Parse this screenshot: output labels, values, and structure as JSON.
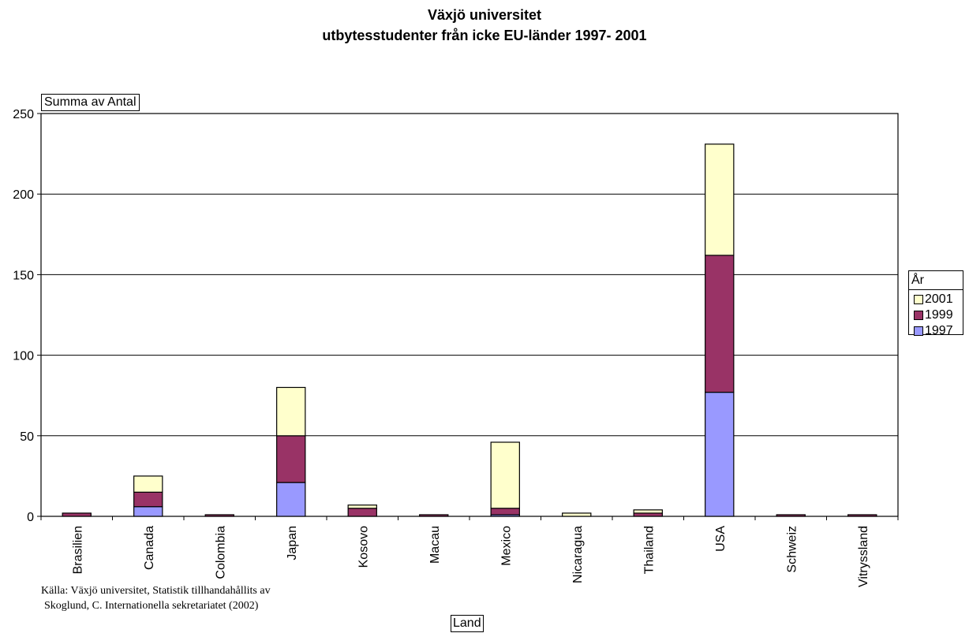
{
  "chart_data": {
    "type": "bar",
    "stacked": true,
    "title": "Växjö universitet",
    "subtitle": "utbytesstudenter från icke EU-länder 1997- 2001",
    "ylabel": "Summa av Antal",
    "xlabel": "Land",
    "ylim": [
      0,
      250
    ],
    "yticks": [
      "0",
      "50",
      "100",
      "150",
      "200",
      "250"
    ],
    "grid": true,
    "legend_title": "År",
    "legend_position": "right",
    "categories": [
      "Brasilien",
      "Canada",
      "Colombia",
      "Japan",
      "Kosovo",
      "Macau",
      "Mexico",
      "Nicaragua",
      "Thailand",
      "USA",
      "Schweiz",
      "Vitryssland"
    ],
    "series": [
      {
        "name": "1997",
        "color": "#9999FF",
        "values": [
          0,
          6,
          0,
          21,
          0,
          0,
          1,
          0,
          0,
          77,
          0,
          0
        ]
      },
      {
        "name": "1999",
        "color": "#993366",
        "values": [
          2,
          9,
          1,
          29,
          5,
          1,
          4,
          0,
          2,
          85,
          1,
          1
        ]
      },
      {
        "name": "2001",
        "color": "#FFFFCC",
        "values": [
          0,
          10,
          0,
          30,
          2,
          0,
          41,
          2,
          2,
          69,
          0,
          0
        ]
      }
    ],
    "legend_order": [
      "2001",
      "1999",
      "1997"
    ]
  },
  "source_note": {
    "line1": "Källa: Växjö universitet, Statistik tillhandahållits av",
    "line2": "Skoglund, C. Internationella sekretariatet (2002)"
  }
}
